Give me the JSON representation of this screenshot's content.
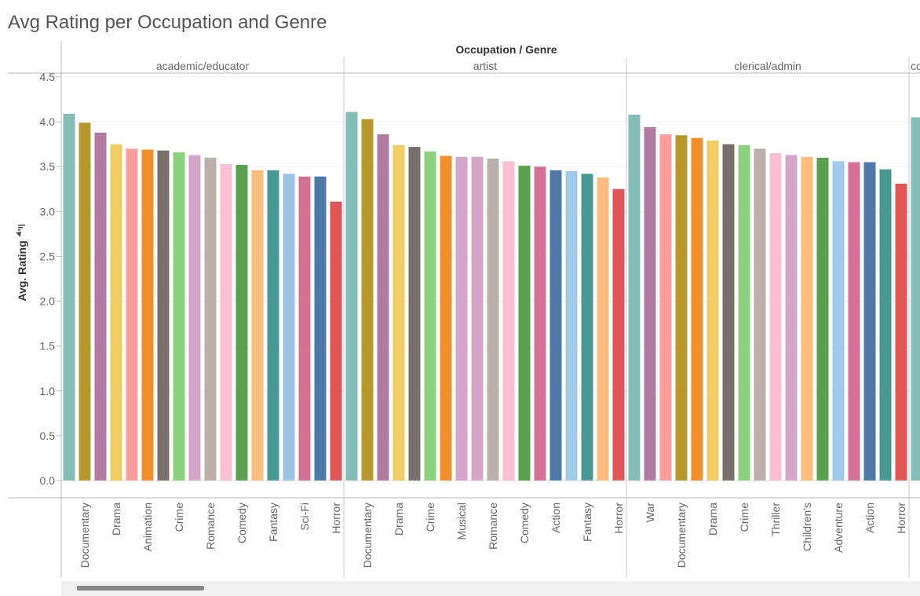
{
  "chart_data": {
    "type": "bar",
    "title": "Avg Rating per Occupation and Genre",
    "x_label": "Occupation / Genre",
    "y_label": "Avg. Rating",
    "ylim": [
      0,
      4.5
    ],
    "yticks": [
      {
        "value": 0,
        "label": "0.0"
      },
      0.5,
      {
        "value": 1,
        "label": "1.0"
      },
      1.5,
      {
        "value": 2,
        "label": "2.0"
      },
      2.5,
      {
        "value": 3,
        "label": "3.0"
      },
      3.5,
      {
        "value": 4,
        "label": "4.0"
      },
      4.5
    ],
    "grid": true,
    "panels": [
      {
        "name": "academic/educator",
        "categories": [
          null,
          "Documentary",
          null,
          "Drama",
          null,
          "Animation",
          null,
          "Crime",
          null,
          "Romance",
          null,
          "Comedy",
          null,
          "Fantasy",
          null,
          "Sci-Fi",
          null,
          "Horror"
        ],
        "values": [
          4.09,
          3.99,
          3.88,
          3.75,
          3.7,
          3.69,
          3.68,
          3.66,
          3.63,
          3.6,
          3.53,
          3.52,
          3.46,
          3.46,
          3.42,
          3.39,
          3.39,
          3.11
        ],
        "colors": [
          "#86bcb6",
          "#b6992d",
          "#b07aa1",
          "#f1ce63",
          "#ff9d9a",
          "#f28e2b",
          "#79706e",
          "#8cd17d",
          "#d4a6c8",
          "#bab0ac",
          "#fabfd2",
          "#59a14f",
          "#ffbe7d",
          "#499894",
          "#9dc4e6",
          "#d37295",
          "#4e79a7",
          "#e15759"
        ]
      },
      {
        "name": "artist",
        "categories": [
          null,
          "Documentary",
          null,
          "Drama",
          null,
          "Crime",
          null,
          "Musical",
          null,
          "Romance",
          null,
          "Comedy",
          null,
          "Action",
          null,
          "Fantasy",
          null,
          "Horror"
        ],
        "values": [
          4.11,
          4.03,
          3.86,
          3.74,
          3.72,
          3.67,
          3.62,
          3.61,
          3.61,
          3.59,
          3.56,
          3.51,
          3.5,
          3.46,
          3.45,
          3.42,
          3.38,
          3.25
        ],
        "colors": [
          "#86bcb6",
          "#b6992d",
          "#b07aa1",
          "#f1ce63",
          "#79706e",
          "#8cd17d",
          "#f28e2b",
          "#d4a6c8",
          "#d4a6c8",
          "#bab0ac",
          "#fabfd2",
          "#59a14f",
          "#d37295",
          "#4e79a7",
          "#a0cbe8",
          "#499894",
          "#ffbe7d",
          "#e15759"
        ]
      },
      {
        "name": "clerical/admin",
        "categories": [
          null,
          "War",
          null,
          "Documentary",
          null,
          "Drama",
          null,
          "Crime",
          null,
          "Thriller",
          null,
          "Children's",
          null,
          "Adventure",
          null,
          "Action",
          null,
          "Horror"
        ],
        "values": [
          4.08,
          3.94,
          3.86,
          3.85,
          3.82,
          3.79,
          3.75,
          3.74,
          3.7,
          3.65,
          3.63,
          3.61,
          3.6,
          3.56,
          3.55,
          3.55,
          3.47,
          3.31
        ],
        "colors": [
          "#86bcb6",
          "#b07aa1",
          "#ff9d9a",
          "#b6992d",
          "#f28e2b",
          "#f1ce63",
          "#79706e",
          "#8cd17d",
          "#bab0ac",
          "#fabfd2",
          "#d4a6c8",
          "#ffbe7d",
          "#59a14f",
          "#a0cbe8",
          "#d37295",
          "#4e79a7",
          "#499894",
          "#e15759"
        ]
      },
      {
        "name": "co",
        "categories": [
          null
        ],
        "values": [
          4.05
        ],
        "colors": [
          "#86bcb6"
        ]
      }
    ]
  }
}
